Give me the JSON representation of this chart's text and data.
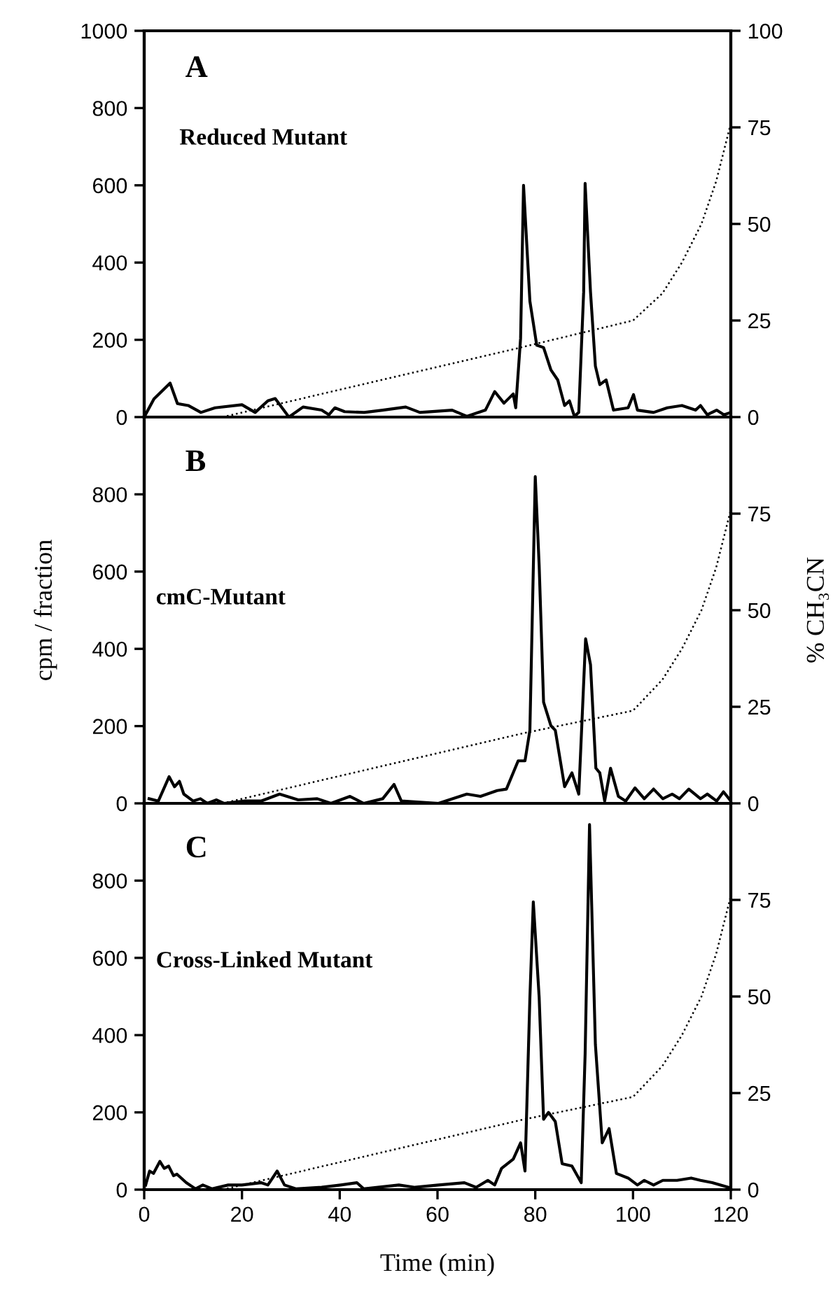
{
  "chart_data": [
    {
      "type": "line",
      "annotations": [
        "A",
        "Reduced Mutant"
      ],
      "xlim": [
        0,
        120
      ],
      "xticks": [
        0,
        20,
        40,
        60,
        80,
        100,
        120
      ],
      "ylim": [
        0,
        1000
      ],
      "yticks": [
        0,
        200,
        400,
        600,
        800,
        1000
      ],
      "y2lim": [
        0,
        100
      ],
      "y2ticks": [
        0,
        25,
        50,
        75,
        100
      ],
      "tick_labels": "y",
      "series": [
        {
          "color": "#000000",
          "x": [
            0,
            2,
            5.3,
            6.8,
            9,
            11.6,
            14.5,
            20,
            22.7,
            25.3,
            26.8,
            29.6,
            32.5,
            36.3,
            37.8,
            39,
            41,
            45,
            48.8,
            53.5,
            56.4,
            63,
            66,
            69.8,
            71.7,
            73.6,
            75.5,
            76,
            77,
            77.6,
            78.9,
            80.3,
            81.7,
            83.2,
            84.6,
            86,
            87,
            88,
            88.9,
            89.9,
            90.2,
            91.3,
            92.3,
            93.2,
            94.5,
            96,
            99,
            100.1,
            100.9,
            104.2,
            107,
            110,
            112.8,
            113.8,
            115.2,
            117.1,
            118.6,
            120
          ],
          "values": [
            0,
            47,
            88,
            35,
            30,
            12,
            24,
            32,
            12,
            42,
            48,
            0,
            26,
            18,
            6,
            24,
            14,
            12,
            18,
            26,
            12,
            18,
            2,
            18,
            66,
            36,
            60,
            24,
            204,
            600,
            300,
            186,
            180,
            122,
            96,
            30,
            42,
            2,
            12,
            324,
            605,
            324,
            132,
            84,
            96,
            18,
            24,
            58,
            18,
            12,
            24,
            30,
            18,
            30,
            6,
            18,
            6,
            12
          ]
        },
        {
          "color": "#000000",
          "axis": "y2",
          "line_style": "dotted",
          "x": [
            16,
            77,
            100,
            106,
            110,
            114,
            117,
            120
          ],
          "values": [
            0,
            18,
            25,
            32,
            40,
            50,
            61,
            76
          ]
        }
      ]
    },
    {
      "type": "line",
      "annotations": [
        "B",
        "cmC-Mutant"
      ],
      "ylabel": "cpm / fraction",
      "y2label": "% CH₃CN",
      "xlim": [
        0,
        120
      ],
      "xticks": [
        0,
        20,
        40,
        60,
        80,
        100,
        120
      ],
      "ylim": [
        0,
        1000
      ],
      "yticks": [
        0,
        200,
        400,
        600,
        800
      ],
      "y2lim": [
        0,
        100
      ],
      "y2ticks": [
        0,
        25,
        50,
        75
      ],
      "tick_labels": "y",
      "series": [
        {
          "color": "#000000",
          "x": [
            1,
            2.9,
            5.1,
            6.2,
            7.2,
            8.1,
            10,
            11.5,
            12.9,
            14.8,
            16.3,
            20.6,
            23.9,
            27.7,
            31.5,
            35.4,
            38.2,
            42.1,
            44.9,
            48.8,
            51.1,
            52.6,
            60.2,
            66,
            68.8,
            72.2,
            74.1,
            76.5,
            77.9,
            78.9,
            80,
            80.8,
            81.7,
            83.2,
            84.1,
            86,
            87.5,
            88.9,
            90.3,
            91.3,
            92.4,
            93.2,
            94.2,
            95.4,
            97,
            98.5,
            100.4,
            102.3,
            104.2,
            106.1,
            108,
            109.5,
            111.4,
            113.8,
            115.2,
            117.1,
            118.5,
            120
          ],
          "values": [
            12,
            6,
            69,
            43,
            57,
            24,
            6,
            12,
            0,
            9,
            0,
            6,
            6,
            24,
            9,
            12,
            0,
            18,
            0,
            12,
            49,
            6,
            0,
            24,
            18,
            33,
            37,
            110,
            110,
            189,
            846,
            615,
            262,
            201,
            189,
            43,
            79,
            24,
            426,
            359,
            91,
            79,
            6,
            91,
            18,
            6,
            40,
            12,
            37,
            12,
            24,
            12,
            37,
            12,
            24,
            6,
            30,
            6
          ]
        },
        {
          "color": "#000000",
          "axis": "y2",
          "line_style": "dotted",
          "x": [
            16,
            77,
            100,
            106,
            110,
            114,
            117,
            120
          ],
          "values": [
            0,
            18,
            24,
            32,
            40,
            50,
            61,
            76
          ]
        }
      ]
    },
    {
      "type": "line",
      "annotations": [
        "C",
        "Cross-Linked Mutant"
      ],
      "xlabel": "Time (min)",
      "xlim": [
        0,
        120
      ],
      "xticks": [
        0,
        20,
        40,
        60,
        80,
        100,
        120
      ],
      "ylim": [
        0,
        1000
      ],
      "yticks": [
        0,
        200,
        400,
        600,
        800
      ],
      "y2lim": [
        0,
        100
      ],
      "y2ticks": [
        0,
        25,
        50,
        75
      ],
      "series": [
        {
          "color": "#000000",
          "x": [
            0.3,
            1.1,
            1.9,
            3.2,
            4.1,
            5,
            6,
            6.7,
            8.6,
            10.5,
            12,
            13.9,
            17.2,
            20,
            23.9,
            25.3,
            27.2,
            28.7,
            31.1,
            36.3,
            40.2,
            43.5,
            44.9,
            52.1,
            55.4,
            60.2,
            65.5,
            67.9,
            70.3,
            71.7,
            73.1,
            75.5,
            77,
            77.9,
            78.9,
            79.6,
            80.8,
            81.7,
            82.7,
            84.1,
            85.5,
            87.5,
            89.4,
            90.2,
            91.1,
            92.3,
            93.7,
            95.1,
            96.6,
            99,
            100.9,
            102.3,
            104.2,
            106.1,
            109,
            111.9,
            113.8,
            116.2,
            119.5
          ],
          "values": [
            12,
            48,
            42,
            73,
            55,
            61,
            36,
            40,
            18,
            2,
            12,
            2,
            12,
            12,
            18,
            12,
            48,
            12,
            2,
            6,
            12,
            18,
            2,
            12,
            6,
            12,
            18,
            6,
            24,
            12,
            55,
            79,
            121,
            48,
            497,
            745,
            497,
            182,
            200,
            176,
            67,
            61,
            18,
            351,
            945,
            376,
            121,
            158,
            42,
            30,
            12,
            24,
            12,
            24,
            24,
            30,
            24,
            18,
            6
          ]
        },
        {
          "color": "#000000",
          "axis": "y2",
          "line_style": "dotted",
          "x": [
            16,
            77,
            100,
            106,
            110,
            114,
            117,
            120
          ],
          "values": [
            0,
            18,
            24,
            32,
            40,
            50,
            61,
            76
          ]
        }
      ]
    }
  ]
}
